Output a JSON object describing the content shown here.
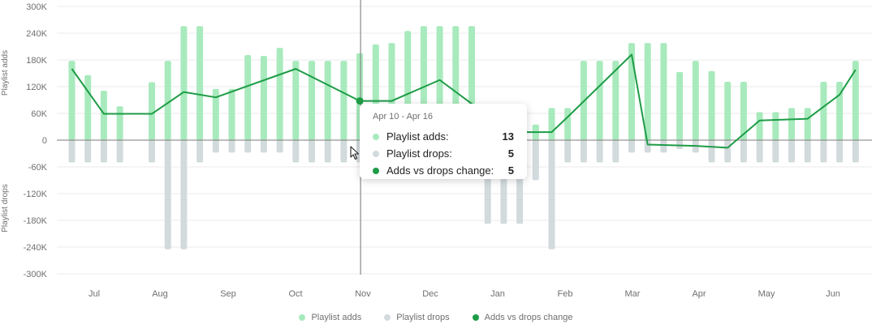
{
  "chart_data": {
    "type": "bar",
    "y_ticks": [
      "300K",
      "240K",
      "180K",
      "120K",
      "60K",
      "0",
      "-60K",
      "-120K",
      "-180K",
      "-240K",
      "-300K"
    ],
    "ylim": [
      -300000,
      300000
    ],
    "ylabel_top": "Playlist adds",
    "ylabel_bottom": "Playlist drops",
    "x_labels": [
      "Jul",
      "Aug",
      "Sep",
      "Oct",
      "Nov",
      "Dec",
      "Jan",
      "Feb",
      "Mar",
      "Apr",
      "May",
      "Jun"
    ],
    "grid": true,
    "colors": {
      "adds": "#a8eabd",
      "drops": "#d3dadd",
      "change": "#1e9c47",
      "axis": "#7a7a7a",
      "grid": "#ebebeb"
    },
    "series": [
      {
        "name": "Playlist adds",
        "values": [
          178000,
          146000,
          111000,
          76000,
          null,
          130000,
          178000,
          256000,
          256000,
          115000,
          115000,
          191000,
          189000,
          207000,
          178000,
          178000,
          178000,
          178000,
          195000,
          215000,
          218000,
          245000,
          256000,
          256000,
          256000,
          256000,
          30000,
          30000,
          30000,
          35000,
          72000,
          72000,
          178000,
          178000,
          178000,
          218000,
          218000,
          218000,
          153000,
          178000,
          155000,
          131000,
          131000,
          63000,
          63000,
          72000,
          72000,
          131000,
          131000,
          178000
        ]
      },
      {
        "name": "Playlist drops",
        "values": [
          -50000,
          -50000,
          -50000,
          -50000,
          null,
          -50000,
          -245000,
          -245000,
          -50000,
          -28000,
          -28000,
          -28000,
          -28000,
          -28000,
          -50000,
          -50000,
          -50000,
          -50000,
          -50000,
          -50000,
          -50000,
          -50000,
          -50000,
          -50000,
          -50000,
          -50000,
          -188000,
          -188000,
          -188000,
          -90000,
          -245000,
          -50000,
          -50000,
          -50000,
          -50000,
          -28000,
          -28000,
          -28000,
          -20000,
          -28000,
          -50000,
          -50000,
          -50000,
          -50000,
          -50000,
          -50000,
          -50000,
          -50000,
          -50000,
          -50000
        ]
      },
      {
        "name": "Adds vs drops change",
        "values": [
          160000,
          59000,
          59000,
          108000,
          96000,
          160000,
          88000,
          88000,
          135000,
          55000,
          18000,
          18000,
          52000,
          192000,
          -10000,
          -13000,
          -17000,
          44000,
          48000,
          102000,
          158000
        ],
        "x_index": [
          0,
          2,
          5,
          7,
          9,
          14,
          18,
          20,
          23,
          26,
          28,
          30,
          31,
          35,
          36,
          39,
          41,
          43,
          46,
          48,
          49
        ]
      }
    ],
    "highlight_index": 18,
    "tooltip": {
      "title": "Apr 10 - Apr 16",
      "rows": [
        {
          "label": "Playlist adds:",
          "value": "13",
          "color": "#a8eabd"
        },
        {
          "label": "Playlist drops:",
          "value": "5",
          "color": "#d3dadd"
        },
        {
          "label": "Adds vs drops change:",
          "value": "5",
          "color": "#1e9c47"
        }
      ]
    },
    "legend": [
      {
        "label": "Playlist adds",
        "color": "#a8eabd"
      },
      {
        "label": "Playlist drops",
        "color": "#d3dadd"
      },
      {
        "label": "Adds vs drops change",
        "color": "#1e9c47"
      }
    ],
    "legend_position": "bottom"
  }
}
